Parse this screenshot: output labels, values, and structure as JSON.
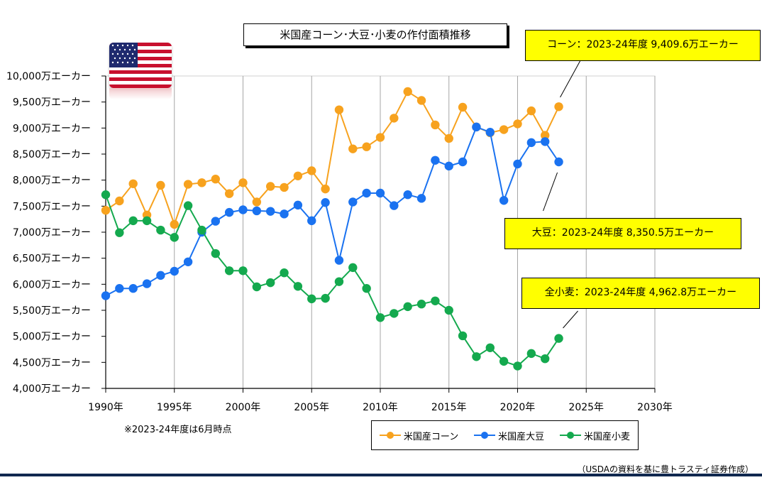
{
  "chart_data": {
    "type": "line",
    "title": "米国産コーン･大豆･小麦の作付面積推移",
    "x_ticks": [
      "1990年",
      "1995年",
      "2000年",
      "2005年",
      "2010年",
      "2015年",
      "2020年",
      "2025年",
      "2030年"
    ],
    "y_ticks": [
      "4,000万エーカー",
      "4,500万エーカー",
      "5,000万エーカー",
      "5,500万エーカー",
      "6,000万エーカー",
      "6,500万エーカー",
      "7,000万エーカー",
      "7,500万エーカー",
      "8,000万エーカー",
      "8,500万エーカー",
      "9,000万エーカー",
      "9,500万エーカー",
      "10,000万エーカー"
    ],
    "xlim": [
      1990,
      2030
    ],
    "ylim": [
      4000,
      10000
    ],
    "grid": "vertical",
    "legend_position": "bottom-center",
    "x": [
      1990,
      1991,
      1992,
      1993,
      1994,
      1995,
      1996,
      1997,
      1998,
      1999,
      2000,
      2001,
      2002,
      2003,
      2004,
      2005,
      2006,
      2007,
      2008,
      2009,
      2010,
      2011,
      2012,
      2013,
      2014,
      2015,
      2016,
      2017,
      2018,
      2019,
      2020,
      2021,
      2022,
      2023
    ],
    "series": [
      {
        "name": "米国産コーン",
        "color": "#f7a21e",
        "values": [
          7420,
          7600,
          7930,
          7330,
          7900,
          7150,
          7920,
          7950,
          8020,
          7740,
          7950,
          7580,
          7880,
          7860,
          8080,
          8180,
          7830,
          9350,
          8600,
          8640,
          8820,
          9190,
          9700,
          9530,
          9060,
          8800,
          9400,
          9020,
          8910,
          8970,
          9080,
          9330,
          8860,
          9410
        ]
      },
      {
        "name": "米国産大豆",
        "color": "#1a72f0",
        "values": [
          5780,
          5920,
          5920,
          6010,
          6170,
          6250,
          6430,
          7000,
          7210,
          7380,
          7430,
          7410,
          7400,
          7350,
          7520,
          7220,
          7570,
          6460,
          7580,
          7750,
          7750,
          7510,
          7720,
          7650,
          8380,
          8270,
          8350,
          9020,
          8920,
          7610,
          8310,
          8720,
          8740,
          8350
        ]
      },
      {
        "name": "米国産小麦",
        "color": "#14a94e",
        "values": [
          7720,
          6990,
          7220,
          7220,
          7040,
          6900,
          7510,
          7040,
          6590,
          6260,
          6260,
          5950,
          6030,
          6220,
          5960,
          5720,
          5730,
          6050,
          6320,
          5920,
          5360,
          5440,
          5570,
          5620,
          5680,
          5500,
          5010,
          4610,
          4780,
          4520,
          4430,
          4670,
          4570,
          4960
        ]
      }
    ],
    "callouts": [
      {
        "text": "コーン：2023-24年度  9,409.6万エーカー"
      },
      {
        "text": "大豆：2023-24年度  8,350.5万エーカー"
      },
      {
        "text": "全小麦：2023-24年度  4,962.8万エーカー"
      }
    ],
    "note": "※2023-24年度は6月時点",
    "source": "（USDAの資料を基に豊トラスティ証券作成）"
  }
}
